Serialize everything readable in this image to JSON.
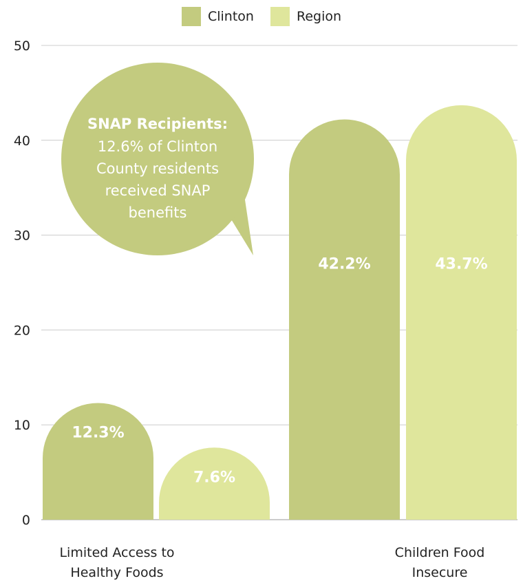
{
  "legend": {
    "series_1": "Clinton",
    "series_2": "Region"
  },
  "colors": {
    "clinton": "#c3cb7f",
    "region": "#dfe69c",
    "grid": "#cccccc",
    "label_text": "#ffffff"
  },
  "callout": {
    "bold": "SNAP Recipients:",
    "lines": [
      "12.6% of Clinton",
      "County residents",
      "received SNAP",
      "benefits"
    ]
  },
  "chart_data": {
    "type": "bar",
    "categories": [
      "Limited Access to\nHealthy Foods",
      "Children Food\nInsecure"
    ],
    "series": [
      {
        "name": "Clinton",
        "values": [
          12.3,
          42.2
        ],
        "labels": [
          "12.3%",
          "42.2%"
        ]
      },
      {
        "name": "Region",
        "values": [
          7.6,
          43.7
        ],
        "labels": [
          "7.6%",
          "43.7%"
        ]
      }
    ],
    "yticks": [
      "0",
      "10",
      "20",
      "30",
      "40",
      "50"
    ],
    "ylim": [
      0,
      50
    ],
    "grid": true,
    "legend_position": "top"
  }
}
